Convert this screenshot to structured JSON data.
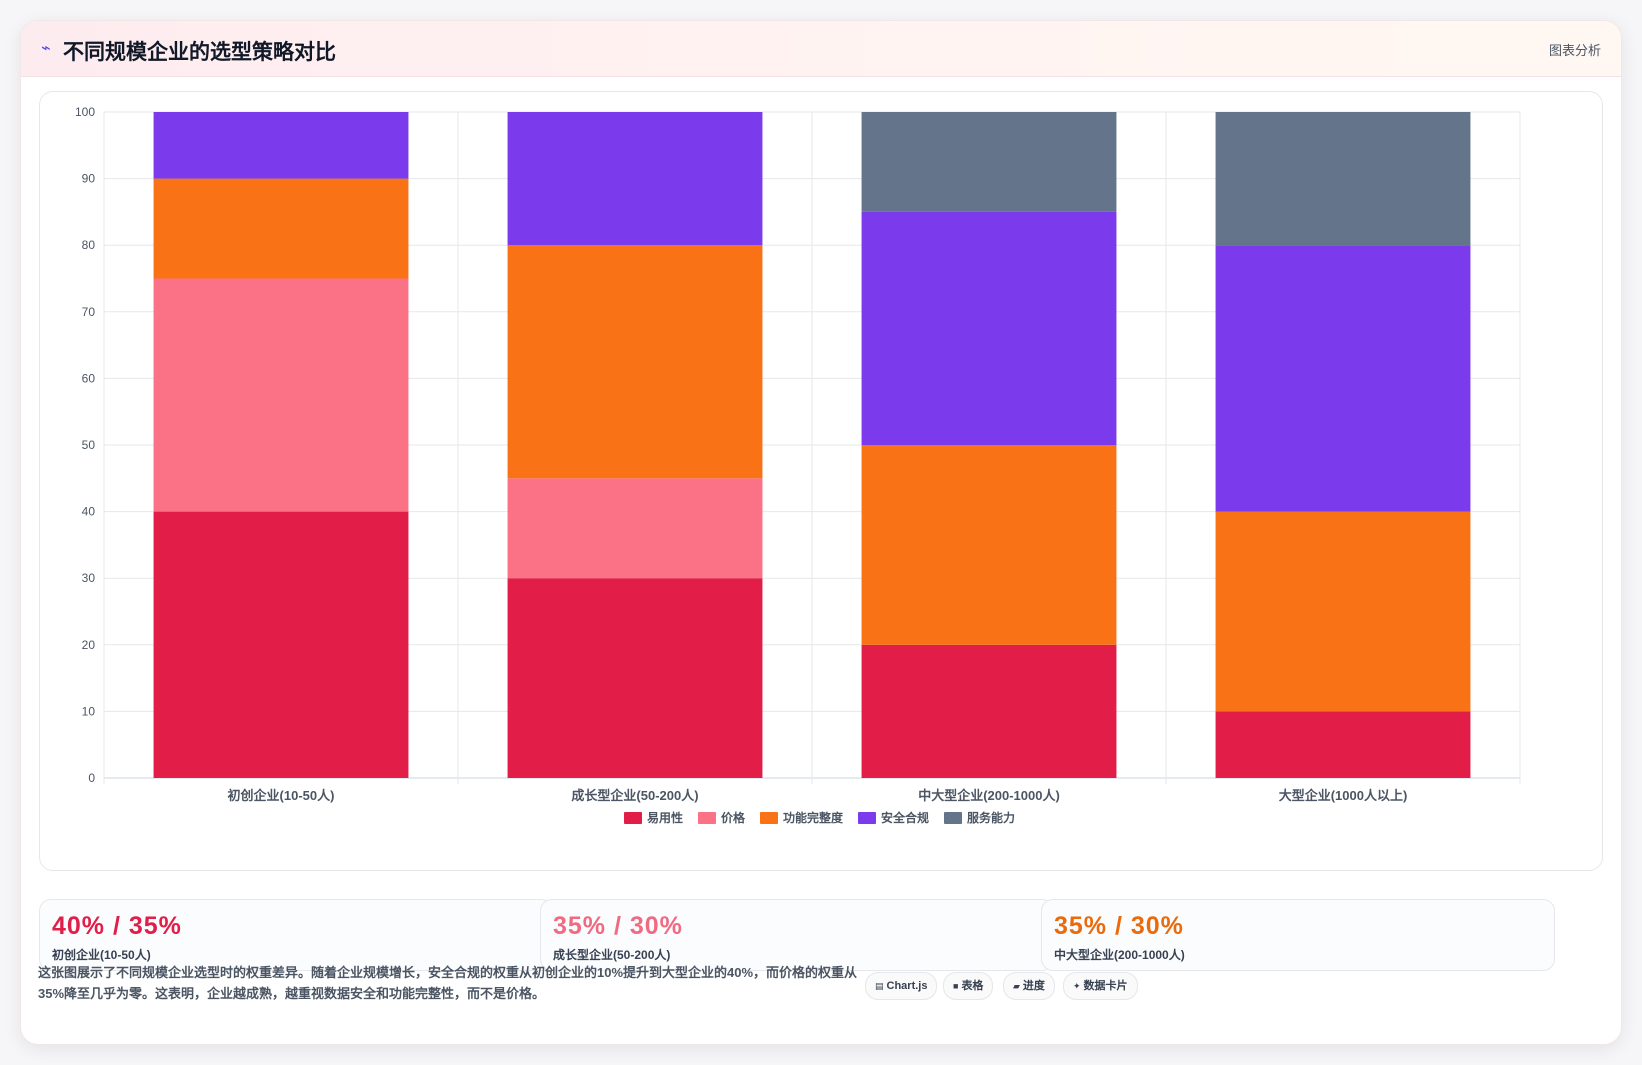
{
  "header": {
    "icon": "trend-icon",
    "title": "不同规模企业的选型策略对比",
    "tag": "图表分析"
  },
  "chart_data": {
    "type": "bar",
    "stacked": true,
    "categories": [
      "初创企业(10-50人)",
      "成长型企业(50-200人)",
      "中大型企业(200-1000人)",
      "大型企业(1000人以上)"
    ],
    "series": [
      {
        "name": "易用性",
        "color": "#e11d48",
        "values": [
          40,
          30,
          20,
          10
        ]
      },
      {
        "name": "价格",
        "color": "#fb7185",
        "values": [
          35,
          15,
          0,
          0
        ]
      },
      {
        "name": "功能完整度",
        "color": "#f97316",
        "values": [
          15,
          35,
          30,
          30
        ]
      },
      {
        "name": "安全合规",
        "color": "#7c3aed",
        "values": [
          10,
          20,
          35,
          40
        ]
      },
      {
        "name": "服务能力",
        "color": "#64748b",
        "values": [
          0,
          0,
          15,
          20
        ]
      }
    ],
    "ylim": [
      0,
      100
    ],
    "yticks": [
      0,
      10,
      20,
      30,
      40,
      50,
      60,
      70,
      80,
      90,
      100
    ],
    "grid": true,
    "legend": "bottom"
  },
  "stats": [
    {
      "value": "40% / 35%",
      "label": "初创企业(10-50人)",
      "color": "#e11d48"
    },
    {
      "value": "35% / 30%",
      "label": "成长型企业(50-200人)",
      "color": "#f06b82"
    },
    {
      "value": "35% / 30%",
      "label": "中大型企业(200-1000人)",
      "color": "#ea6a0c"
    }
  ],
  "description": "这张图展示了不同规模企业选型时的权重差异。随着企业规模增长，安全合规的权重从初创企业的10%提升到大型企业的40%，而价格的权重从35%降至几乎为零。这表明，企业越成熟，越重视数据安全和功能完整性，而不是价格。",
  "pills": [
    {
      "icon": "▤",
      "label": "Chart.js"
    },
    {
      "icon": "■",
      "label": "表格"
    },
    {
      "icon": "▰",
      "label": "进度"
    },
    {
      "icon": "✦",
      "label": "数据卡片"
    }
  ]
}
